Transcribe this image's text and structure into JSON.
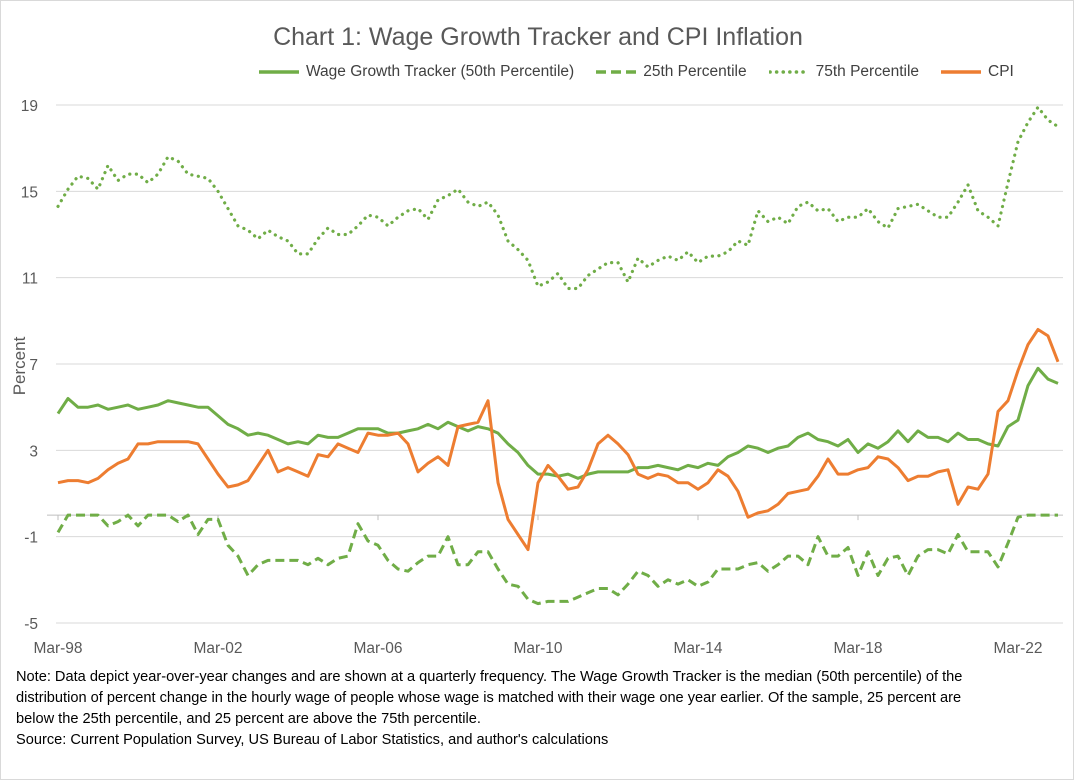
{
  "chart_data": {
    "type": "line",
    "title": "Chart 1: Wage Growth Tracker and CPI Inflation",
    "xlabel": "",
    "ylabel": "Percent",
    "ylim": [
      -5,
      19
    ],
    "yticks": [
      "-5",
      "-1",
      "3",
      "7",
      "11",
      "15",
      "19"
    ],
    "xticks": [
      "Mar-98",
      "Mar-02",
      "Mar-06",
      "Mar-10",
      "Mar-14",
      "Mar-18",
      "Mar-22"
    ],
    "grid": true,
    "legend_position": "top",
    "x": [
      "Mar-98",
      "Jun-98",
      "Sep-98",
      "Dec-98",
      "Mar-99",
      "Jun-99",
      "Sep-99",
      "Dec-99",
      "Mar-00",
      "Jun-00",
      "Sep-00",
      "Dec-00",
      "Mar-01",
      "Jun-01",
      "Sep-01",
      "Dec-01",
      "Mar-02",
      "Jun-02",
      "Sep-02",
      "Dec-02",
      "Mar-03",
      "Jun-03",
      "Sep-03",
      "Dec-03",
      "Mar-04",
      "Jun-04",
      "Sep-04",
      "Dec-04",
      "Mar-05",
      "Jun-05",
      "Sep-05",
      "Dec-05",
      "Mar-06",
      "Jun-06",
      "Sep-06",
      "Dec-06",
      "Mar-07",
      "Jun-07",
      "Sep-07",
      "Dec-07",
      "Mar-08",
      "Jun-08",
      "Sep-08",
      "Dec-08",
      "Mar-09",
      "Jun-09",
      "Sep-09",
      "Dec-09",
      "Mar-10",
      "Jun-10",
      "Sep-10",
      "Dec-10",
      "Mar-11",
      "Jun-11",
      "Sep-11",
      "Dec-11",
      "Mar-12",
      "Jun-12",
      "Sep-12",
      "Dec-12",
      "Mar-13",
      "Jun-13",
      "Sep-13",
      "Dec-13",
      "Mar-14",
      "Jun-14",
      "Sep-14",
      "Dec-14",
      "Mar-15",
      "Jun-15",
      "Sep-15",
      "Dec-15",
      "Mar-16",
      "Jun-16",
      "Sep-16",
      "Dec-16",
      "Mar-17",
      "Jun-17",
      "Sep-17",
      "Dec-17",
      "Mar-18",
      "Jun-18",
      "Sep-18",
      "Dec-18",
      "Mar-19",
      "Jun-19",
      "Sep-19",
      "Dec-19",
      "Mar-20",
      "Jun-20",
      "Sep-20",
      "Dec-20",
      "Mar-21",
      "Jun-21",
      "Sep-21",
      "Dec-21",
      "Mar-22",
      "Jun-22",
      "Sep-22",
      "Dec-22",
      "Mar-23"
    ],
    "series": [
      {
        "name": "Wage Growth Tracker (50th Percentile)",
        "color": "#70ad47",
        "style": "solid",
        "values": [
          4.7,
          5.4,
          5.0,
          5.0,
          5.1,
          4.9,
          5.0,
          5.1,
          4.9,
          5.0,
          5.1,
          5.3,
          5.2,
          5.1,
          5.0,
          5.0,
          4.6,
          4.2,
          4.0,
          3.7,
          3.8,
          3.7,
          3.5,
          3.3,
          3.4,
          3.3,
          3.7,
          3.6,
          3.6,
          3.8,
          4.0,
          4.0,
          4.0,
          3.8,
          3.8,
          3.9,
          4.0,
          4.2,
          4.0,
          4.3,
          4.1,
          3.9,
          4.1,
          4.0,
          3.8,
          3.3,
          2.9,
          2.3,
          1.9,
          1.9,
          1.8,
          1.9,
          1.7,
          1.9,
          2.0,
          2.0,
          2.0,
          2.0,
          2.2,
          2.2,
          2.3,
          2.2,
          2.1,
          2.3,
          2.2,
          2.4,
          2.3,
          2.7,
          2.9,
          3.2,
          3.1,
          2.9,
          3.1,
          3.2,
          3.6,
          3.8,
          3.5,
          3.4,
          3.2,
          3.5,
          2.9,
          3.3,
          3.1,
          3.4,
          3.9,
          3.4,
          3.9,
          3.6,
          3.6,
          3.4,
          3.8,
          3.5,
          3.5,
          3.3,
          3.2,
          4.1,
          4.4,
          6.0,
          6.8,
          6.3,
          6.1
        ]
      },
      {
        "name": "25th Percentile",
        "color": "#70ad47",
        "style": "dashed",
        "values": [
          -0.8,
          0,
          0,
          0,
          0,
          -0.5,
          -0.3,
          0,
          -0.5,
          0,
          0,
          0,
          -0.3,
          0,
          -0.9,
          -0.2,
          -0.2,
          -1.4,
          -1.9,
          -2.8,
          -2.3,
          -2.1,
          -2.1,
          -2.1,
          -2.1,
          -2.3,
          -2.0,
          -2.3,
          -2.0,
          -1.9,
          -0.4,
          -1.2,
          -1.4,
          -2.1,
          -2.5,
          -2.6,
          -2.2,
          -1.9,
          -1.9,
          -1.0,
          -2.3,
          -2.3,
          -1.7,
          -1.7,
          -2.5,
          -3.2,
          -3.3,
          -3.9,
          -4.1,
          -4.0,
          -4.0,
          -4.0,
          -3.8,
          -3.6,
          -3.4,
          -3.4,
          -3.7,
          -3.2,
          -2.6,
          -2.8,
          -3.3,
          -3.0,
          -3.2,
          -3.0,
          -3.3,
          -3.1,
          -2.5,
          -2.5,
          -2.5,
          -2.3,
          -2.2,
          -2.6,
          -2.3,
          -1.9,
          -1.9,
          -2.3,
          -1.0,
          -1.9,
          -1.9,
          -1.5,
          -2.8,
          -1.7,
          -2.8,
          -2.0,
          -1.9,
          -2.8,
          -1.9,
          -1.6,
          -1.6,
          -1.8,
          -0.9,
          -1.7,
          -1.7,
          -1.7,
          -2.4,
          -1.3,
          -0.1,
          0,
          0,
          0,
          0
        ]
      },
      {
        "name": "75th Percentile",
        "color": "#70ad47",
        "style": "dotted",
        "values": [
          14.3,
          15.1,
          15.7,
          15.6,
          15.1,
          16.2,
          15.5,
          15.8,
          15.8,
          15.4,
          15.8,
          16.6,
          16.4,
          15.8,
          15.7,
          15.6,
          15.0,
          14.2,
          13.4,
          13.2,
          12.8,
          13.2,
          12.9,
          12.7,
          12.1,
          12.1,
          12.8,
          13.3,
          13.0,
          13.0,
          13.4,
          13.9,
          13.8,
          13.4,
          13.8,
          14.1,
          14.2,
          13.7,
          14.6,
          14.8,
          15.1,
          14.5,
          14.3,
          14.5,
          13.9,
          12.7,
          12.3,
          11.8,
          10.6,
          10.8,
          11.2,
          10.5,
          10.5,
          11.1,
          11.4,
          11.7,
          11.7,
          10.8,
          11.9,
          11.5,
          11.8,
          12.0,
          11.8,
          12.2,
          11.7,
          12.0,
          12.0,
          12.2,
          12.7,
          12.5,
          14.1,
          13.6,
          13.8,
          13.5,
          14.3,
          14.5,
          14.1,
          14.2,
          13.6,
          13.8,
          13.8,
          14.2,
          13.6,
          13.3,
          14.2,
          14.3,
          14.4,
          14.1,
          13.8,
          13.8,
          14.5,
          15.3,
          14.1,
          13.8,
          13.4,
          15.4,
          17.3,
          18.2,
          18.9,
          18.3,
          18.0
        ]
      },
      {
        "name": "CPI",
        "color": "#ed7d31",
        "style": "solid",
        "values": [
          1.5,
          1.6,
          1.6,
          1.5,
          1.7,
          2.1,
          2.4,
          2.6,
          3.3,
          3.3,
          3.4,
          3.4,
          3.4,
          3.4,
          3.3,
          2.6,
          1.9,
          1.3,
          1.4,
          1.6,
          2.3,
          3.0,
          2.0,
          2.2,
          2.0,
          1.8,
          2.8,
          2.7,
          3.3,
          3.1,
          2.9,
          3.8,
          3.7,
          3.7,
          3.8,
          3.3,
          2.0,
          2.4,
          2.7,
          2.3,
          4.1,
          4.2,
          4.3,
          5.3,
          1.5,
          -0.2,
          -0.9,
          -1.6,
          1.5,
          2.3,
          1.8,
          1.2,
          1.3,
          2.1,
          3.3,
          3.7,
          3.3,
          2.8,
          1.9,
          1.7,
          1.9,
          1.8,
          1.5,
          1.5,
          1.2,
          1.5,
          2.1,
          1.8,
          1.1,
          -0.1,
          0.1,
          0.2,
          0.5,
          1.0,
          1.1,
          1.2,
          1.8,
          2.6,
          1.9,
          1.9,
          2.1,
          2.2,
          2.7,
          2.6,
          2.2,
          1.6,
          1.8,
          1.8,
          2.0,
          2.1,
          0.5,
          1.3,
          1.2,
          1.9,
          4.8,
          5.3,
          6.7,
          7.9,
          8.6,
          8.3,
          7.1
        ]
      }
    ]
  },
  "note": {
    "line1": "Note: Data depict year-over-year changes and are shown at a quarterly frequency. The Wage Growth Tracker is the median (50th percentile) of the",
    "line2": "distribution of percent change in the hourly wage of people whose wage is matched with their wage one year earlier. Of the sample, 25 percent are",
    "line3": "below the 25th percentile, and 25 percent are above the 75th percentile.",
    "source": "Source: Current Population Survey, US Bureau of Labor Statistics, and author's calculations"
  }
}
